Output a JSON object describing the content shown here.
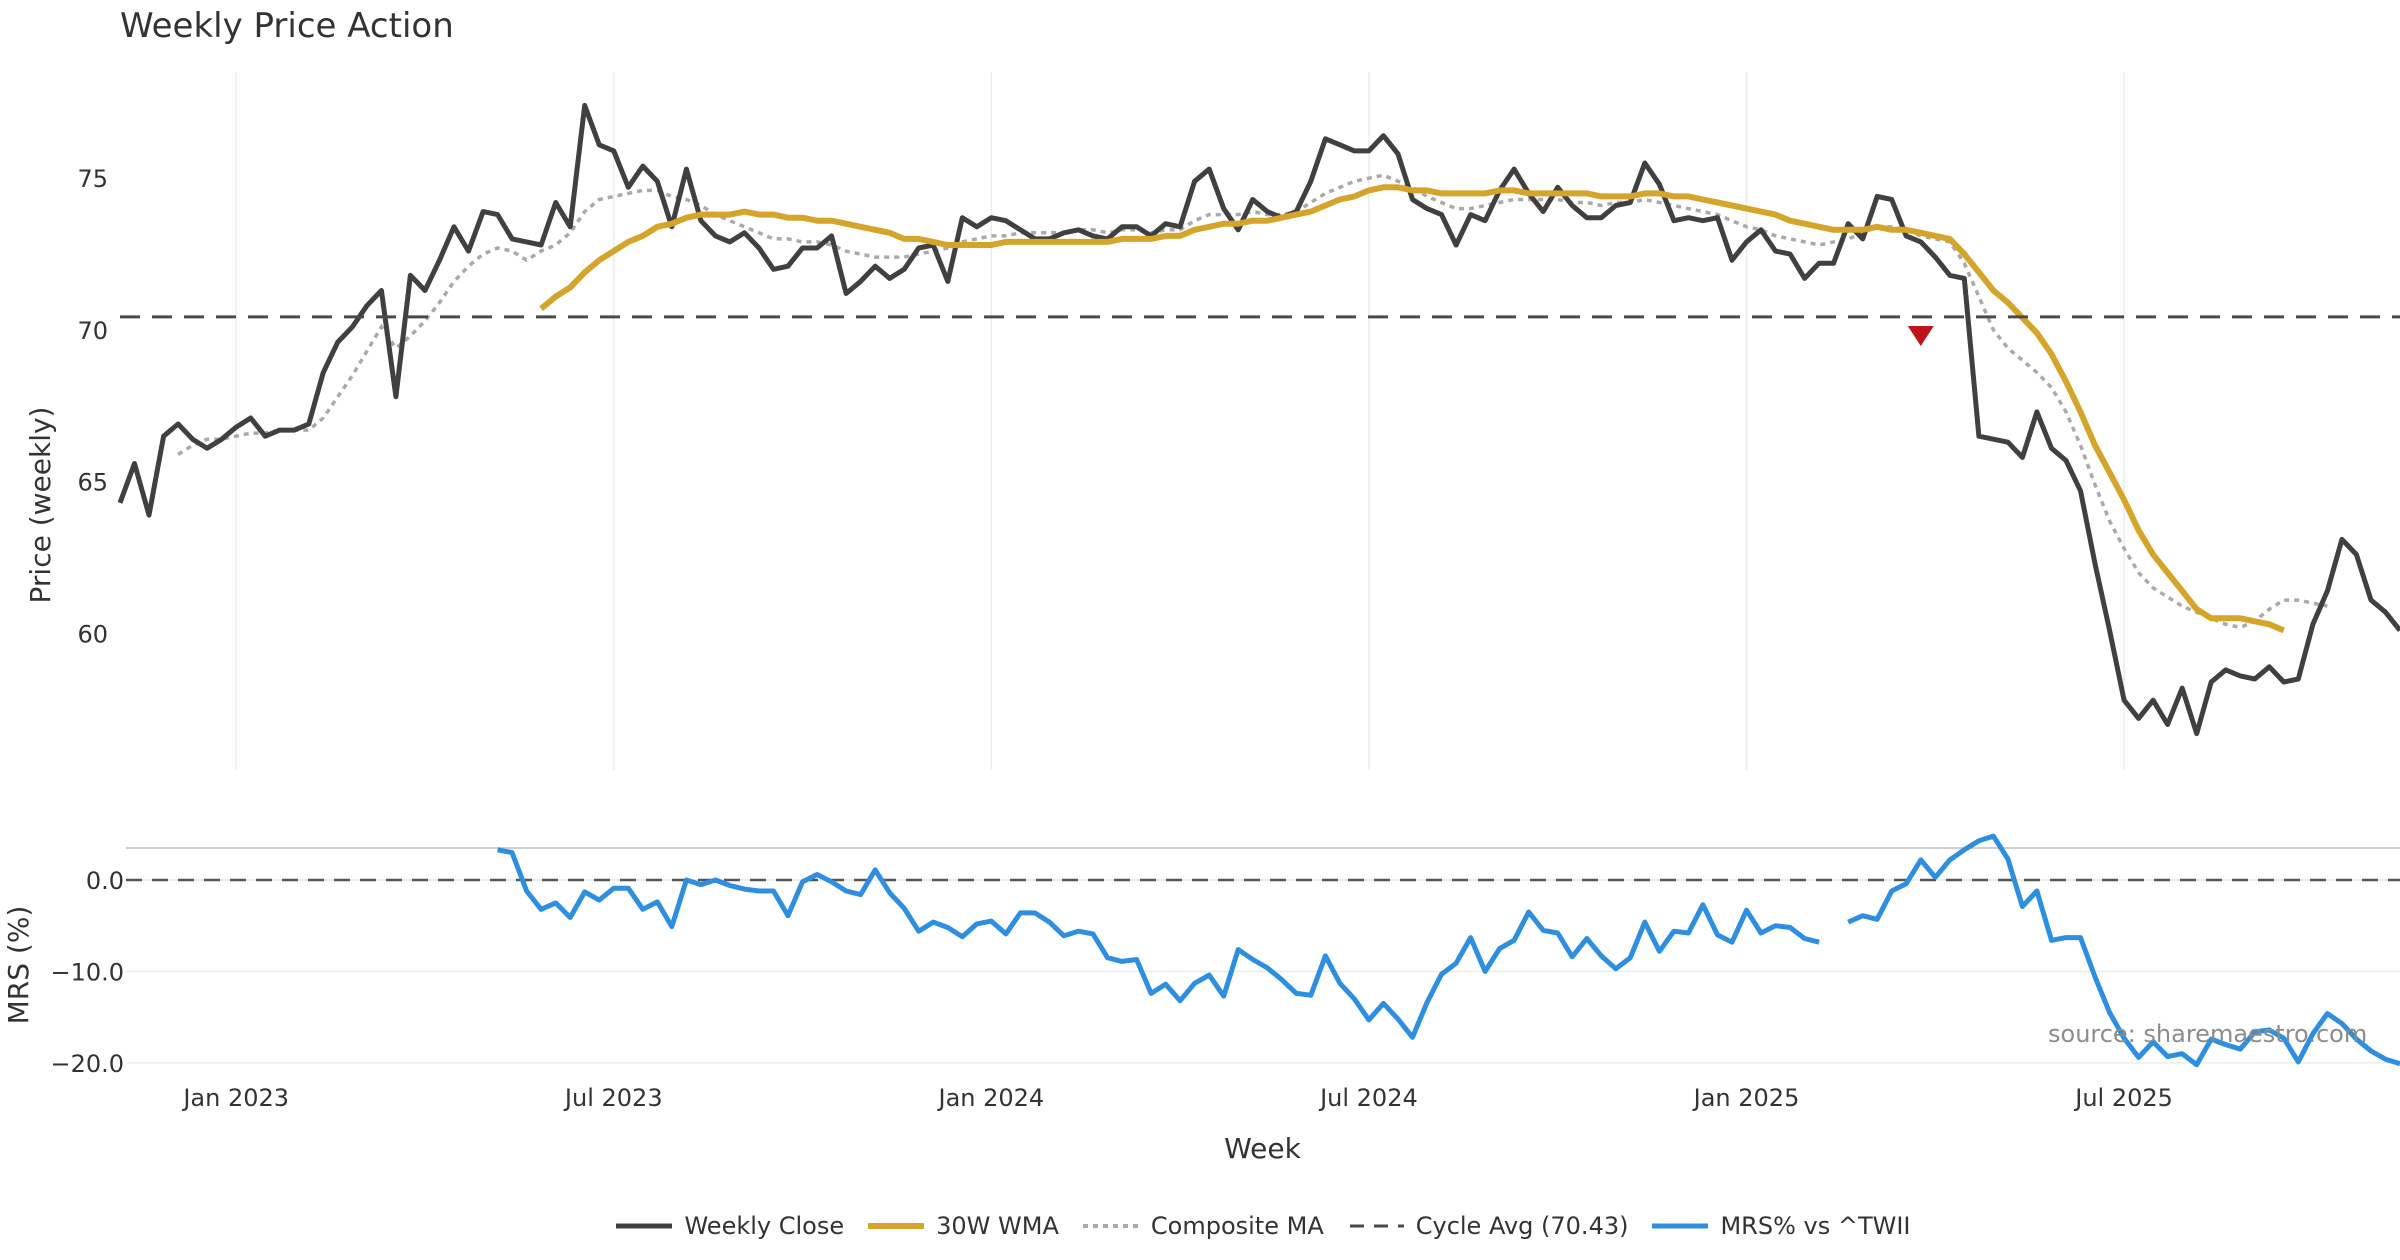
{
  "title": "Weekly Price Action",
  "source": "source: sharemaestro.com",
  "colors": {
    "close": "#404040",
    "wma": "#d4a52a",
    "composite": "#aaaaaa",
    "cycle": "#4a4a4a",
    "mrs": "#2e8fe0",
    "marker": "#c0141a",
    "grid": "#ececec"
  },
  "chart_data": {
    "type": "line",
    "title": "Weekly Price Action",
    "xlabel": "Week",
    "ylabel": "Price (weekly)",
    "ylabel2": "MRS (%)",
    "ylim": [
      55.5,
      78.5
    ],
    "ylim2": [
      -21,
      3.5
    ],
    "yticks": [
      60,
      65,
      70,
      75
    ],
    "yticks2": [
      0,
      -10,
      -20
    ],
    "ytick_labels2": [
      "0.0",
      "−10.0",
      "−20.0"
    ],
    "x_ticks": [
      "Jan 2023",
      "Jul 2023",
      "Jan 2024",
      "Jul 2024",
      "Jan 2025",
      "Jul 2025"
    ],
    "tick_weeks": [
      8,
      34,
      60,
      86,
      112,
      138
    ],
    "cycle_avg": 70.43,
    "sell_marker": {
      "week": 124,
      "value": 69.8
    },
    "close": [
      64.3,
      65.6,
      63.9,
      66.5,
      66.9,
      66.4,
      66.1,
      66.4,
      66.8,
      67.1,
      66.5,
      66.7,
      66.7,
      66.9,
      68.6,
      69.6,
      70.1,
      70.8,
      71.3,
      67.8,
      71.8,
      71.3,
      72.3,
      73.4,
      72.6,
      73.9,
      73.8,
      73.0,
      72.9,
      72.8,
      74.2,
      73.4,
      77.4,
      76.1,
      75.9,
      74.7,
      75.4,
      74.9,
      73.4,
      75.3,
      73.6,
      73.1,
      72.9,
      73.2,
      72.7,
      72.0,
      72.1,
      72.7,
      72.7,
      73.1,
      71.2,
      71.6,
      72.1,
      71.7,
      72.0,
      72.7,
      72.8,
      71.6,
      73.7,
      73.4,
      73.7,
      73.6,
      73.3,
      73.0,
      73.0,
      73.2,
      73.3,
      73.1,
      73.0,
      73.4,
      73.4,
      73.1,
      73.5,
      73.4,
      74.9,
      75.3,
      74.0,
      73.3,
      74.3,
      73.9,
      73.7,
      73.9,
      74.9,
      76.3,
      76.1,
      75.9,
      75.9,
      76.4,
      75.8,
      74.3,
      74.0,
      73.8,
      72.8,
      73.8,
      73.6,
      74.6,
      75.3,
      74.5,
      73.9,
      74.7,
      74.1,
      73.7,
      73.7,
      74.1,
      74.2,
      75.5,
      74.8,
      73.6,
      73.7,
      73.6,
      73.7,
      72.3,
      72.9,
      73.3,
      72.6,
      72.5,
      71.7,
      72.2,
      72.2,
      73.5,
      73.0,
      74.4,
      74.3,
      73.1,
      72.9,
      72.4,
      71.8,
      71.7,
      66.5,
      66.4,
      66.3,
      65.8,
      67.3,
      66.1,
      65.7,
      64.7,
      62.3,
      60.1,
      57.8,
      57.2,
      57.8,
      57.0,
      58.2,
      56.7,
      58.4,
      58.8,
      58.6,
      58.5,
      58.9,
      58.4,
      58.5,
      60.3,
      61.4,
      63.1,
      62.6,
      61.1,
      60.7,
      60.1
    ],
    "wma": [
      null,
      null,
      null,
      null,
      null,
      null,
      null,
      null,
      null,
      null,
      null,
      null,
      null,
      null,
      null,
      null,
      null,
      null,
      null,
      null,
      null,
      null,
      null,
      null,
      null,
      null,
      null,
      null,
      null,
      70.7,
      71.1,
      71.4,
      71.9,
      72.3,
      72.6,
      72.9,
      73.1,
      73.4,
      73.5,
      73.7,
      73.8,
      73.8,
      73.8,
      73.9,
      73.8,
      73.8,
      73.7,
      73.7,
      73.6,
      73.6,
      73.5,
      73.4,
      73.3,
      73.2,
      73.0,
      73.0,
      72.9,
      72.8,
      72.8,
      72.8,
      72.8,
      72.9,
      72.9,
      72.9,
      72.9,
      72.9,
      72.9,
      72.9,
      72.9,
      73.0,
      73.0,
      73.0,
      73.1,
      73.1,
      73.3,
      73.4,
      73.5,
      73.5,
      73.6,
      73.6,
      73.7,
      73.8,
      73.9,
      74.1,
      74.3,
      74.4,
      74.6,
      74.7,
      74.7,
      74.6,
      74.6,
      74.5,
      74.5,
      74.5,
      74.5,
      74.6,
      74.6,
      74.5,
      74.5,
      74.5,
      74.5,
      74.5,
      74.4,
      74.4,
      74.4,
      74.5,
      74.5,
      74.4,
      74.4,
      74.3,
      74.2,
      74.1,
      74.0,
      73.9,
      73.8,
      73.6,
      73.5,
      73.4,
      73.3,
      73.3,
      73.3,
      73.4,
      73.3,
      73.3,
      73.2,
      73.1,
      73.0,
      72.5,
      71.9,
      71.3,
      70.9,
      70.4,
      69.9,
      69.2,
      68.3,
      67.3,
      66.2,
      65.3,
      64.4,
      63.4,
      62.6,
      62.0,
      61.4,
      60.8,
      60.5,
      60.5,
      60.5,
      60.4,
      60.3,
      60.1
    ],
    "composite": [
      null,
      null,
      null,
      null,
      65.9,
      66.2,
      66.4,
      66.4,
      66.5,
      66.6,
      66.6,
      66.7,
      66.7,
      66.7,
      67.1,
      67.8,
      68.5,
      69.3,
      70.1,
      69.4,
      69.8,
      70.3,
      70.9,
      71.6,
      72.1,
      72.5,
      72.7,
      72.6,
      72.3,
      72.6,
      72.8,
      73.2,
      73.9,
      74.3,
      74.4,
      74.5,
      74.6,
      74.6,
      74.4,
      74.3,
      74.1,
      73.8,
      73.6,
      73.4,
      73.2,
      73.0,
      73.0,
      72.9,
      72.9,
      72.8,
      72.6,
      72.5,
      72.4,
      72.4,
      72.4,
      72.5,
      72.6,
      72.7,
      72.9,
      73.0,
      73.1,
      73.1,
      73.2,
      73.2,
      73.2,
      73.2,
      73.3,
      73.3,
      73.2,
      73.3,
      73.3,
      73.2,
      73.3,
      73.3,
      73.6,
      73.8,
      73.8,
      73.8,
      73.9,
      73.8,
      73.8,
      73.9,
      74.2,
      74.5,
      74.7,
      74.9,
      75.0,
      75.1,
      74.9,
      74.7,
      74.4,
      74.2,
      74.0,
      74.0,
      74.1,
      74.2,
      74.3,
      74.3,
      74.3,
      74.3,
      74.2,
      74.2,
      74.1,
      74.2,
      74.2,
      74.3,
      74.2,
      74.1,
      74.0,
      73.9,
      73.8,
      73.6,
      73.4,
      73.3,
      73.1,
      73.0,
      72.9,
      72.8,
      72.9,
      73.0,
      73.2,
      73.4,
      73.4,
      73.3,
      73.1,
      73.0,
      72.9,
      72.2,
      71.1,
      70.0,
      69.4,
      69.0,
      68.6,
      68.1,
      67.3,
      66.2,
      64.9,
      63.7,
      62.8,
      62.0,
      61.5,
      61.2,
      60.9,
      60.7,
      60.5,
      60.3,
      60.2,
      60.4,
      60.8,
      61.1,
      61.1,
      61.0,
      60.9
    ]
  },
  "mrs_data": {
    "start_week": 26,
    "values": [
      3.3,
      3.0,
      -1.2,
      -3.2,
      -2.5,
      -4.1,
      -1.3,
      -2.2,
      -0.9,
      -0.9,
      -3.2,
      -2.4,
      -5.1,
      0.0,
      -0.5,
      0.0,
      -0.6,
      -1.0,
      -1.2,
      -1.2,
      -3.9,
      -0.2,
      0.6,
      -0.2,
      -1.2,
      -1.6,
      1.1,
      -1.4,
      -3.1,
      -5.6,
      -4.6,
      -5.2,
      -6.2,
      -4.8,
      -4.5,
      -5.9,
      -3.6,
      -3.6,
      -4.6,
      -6.1,
      -5.6,
      -5.9,
      -8.5,
      -8.9,
      -8.7,
      -12.4,
      -11.4,
      -13.2,
      -11.3,
      -10.4,
      -12.7,
      -7.6,
      -8.7,
      -9.6,
      -10.9,
      -12.4,
      -12.6,
      -8.3,
      -11.3,
      -13.0,
      -15.3,
      -13.5,
      -15.2,
      -17.2,
      -13.4,
      -10.3,
      -9.1,
      -6.3,
      -10.0,
      -7.5,
      -6.6,
      -3.5,
      -5.5,
      -5.8,
      -8.4,
      -6.4,
      -8.3,
      -9.7,
      -8.5,
      -4.6,
      -7.8,
      -5.6,
      -5.8,
      -2.7,
      -6.0,
      -6.8,
      -3.3,
      -5.8,
      -5.0,
      -5.2,
      -6.4,
      -6.8,
      null,
      -4.6,
      -3.9,
      -4.3,
      -1.2,
      -0.4,
      2.2,
      0.3,
      2.2,
      3.3,
      4.3,
      4.8,
      2.3,
      -2.9,
      -1.2,
      -6.6,
      -6.3,
      -6.3,
      -10.6,
      -14.5,
      -17.3,
      -19.4,
      -17.7,
      -19.3,
      -19.0,
      -20.2,
      -17.4,
      -18.0,
      -18.5,
      -16.6,
      -16.4,
      -17.3,
      -19.9,
      -16.8,
      -14.6,
      -15.7,
      -17.4,
      -18.7,
      -19.6,
      -20.1
    ]
  },
  "legend": [
    {
      "label": "Weekly Close",
      "style": "solid",
      "color": "#404040"
    },
    {
      "label": "30W WMA",
      "style": "thick",
      "color": "#d4a52a"
    },
    {
      "label": "Composite MA",
      "style": "dotted",
      "color": "#aaaaaa"
    },
    {
      "label": "Cycle Avg (70.43)",
      "style": "dashed",
      "color": "#4a4a4a"
    },
    {
      "label": "MRS% vs ^TWII",
      "style": "solid",
      "color": "#2e8fe0"
    }
  ]
}
